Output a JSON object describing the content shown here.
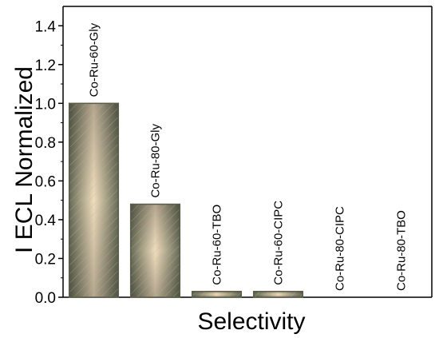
{
  "chart_data": {
    "type": "bar",
    "title": "",
    "xlabel": "Selectivity",
    "ylabel": "I ECL Normalized",
    "categories": [
      "Co-Ru-60-Gly",
      "Co-Ru-80-Gly",
      "Co-Ru-60-TBO",
      "Co-Ru-60-CIPC",
      "Co-Ru-80-CIPC",
      "Co-Ru-80-TBO"
    ],
    "values": [
      1.0,
      0.48,
      0.03,
      0.03,
      0.0,
      0.0
    ],
    "ylim": [
      0,
      1.5
    ],
    "yticks": [
      "0.0",
      "0.2",
      "0.4",
      "0.6",
      "0.8",
      "1.0",
      "1.2",
      "1.4"
    ],
    "grid": false,
    "colors": {
      "bar_edge": "#5c5c4a",
      "bar_center": "#f3dcbe",
      "bar_outer": "#6b6d5a",
      "hatch": "#7fd88a",
      "axis": "#000000"
    }
  }
}
